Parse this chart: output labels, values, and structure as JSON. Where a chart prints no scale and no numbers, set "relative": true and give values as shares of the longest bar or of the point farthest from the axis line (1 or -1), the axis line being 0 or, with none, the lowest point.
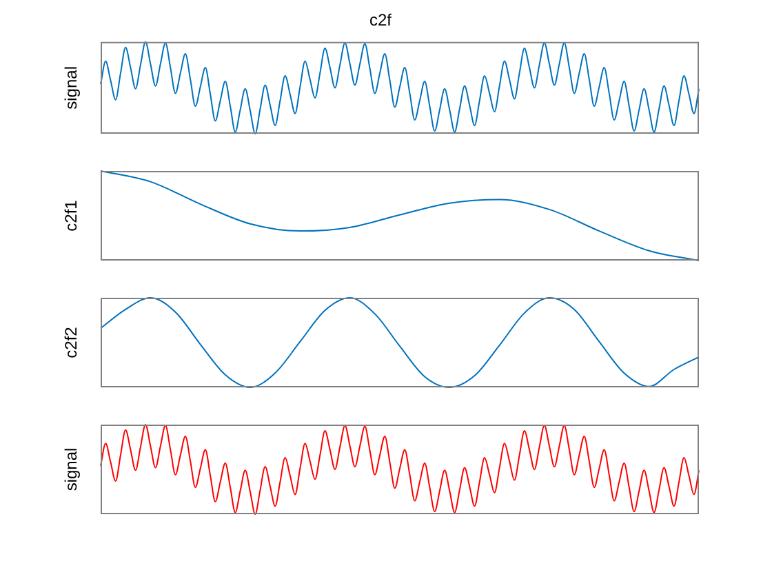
{
  "chart_data": [
    {
      "type": "line",
      "relative": true,
      "title": "c2f",
      "ylabel": "signal",
      "tick_labels": false,
      "color": "#0072bd",
      "categories": [
        null,
        null,
        null,
        null,
        null,
        null,
        null,
        null,
        null,
        null,
        null,
        null,
        null,
        null,
        null,
        null,
        null,
        null,
        null,
        null,
        null,
        null,
        null,
        null,
        null,
        null,
        null,
        null,
        null,
        null,
        null,
        null,
        null,
        null,
        null,
        null,
        null,
        null,
        null,
        null,
        null,
        null,
        null,
        null,
        null,
        null,
        null,
        null,
        null,
        null,
        null,
        null,
        null,
        null,
        null,
        null,
        null,
        null,
        null,
        null,
        null,
        null,
        null,
        null,
        null,
        null,
        null,
        null,
        null,
        null,
        null,
        null,
        null,
        null,
        null,
        null,
        null,
        null,
        null,
        null,
        null,
        null,
        null,
        null,
        null,
        null,
        null,
        null,
        null,
        null,
        null,
        null,
        null,
        null,
        null,
        null,
        null,
        null,
        null,
        null,
        null,
        null,
        null,
        null,
        null,
        null,
        null,
        null,
        null,
        null,
        null,
        null,
        null,
        null,
        null,
        null,
        null,
        null,
        null,
        null,
        null
      ],
      "values": [
        0.54,
        0.79,
        0.58,
        0.37,
        0.66,
        0.94,
        0.72,
        0.49,
        0.75,
        1.0,
        0.76,
        0.52,
        0.76,
        0.99,
        0.72,
        0.44,
        0.66,
        0.87,
        0.59,
        0.3,
        0.51,
        0.72,
        0.43,
        0.14,
        0.36,
        0.57,
        0.3,
        0.02,
        0.26,
        0.49,
        0.25,
        0.0,
        0.27,
        0.53,
        0.31,
        0.09,
        0.36,
        0.63,
        0.43,
        0.22,
        0.51,
        0.79,
        0.59,
        0.39,
        0.66,
        0.93,
        0.72,
        0.5,
        0.75,
        0.99,
        0.76,
        0.53,
        0.76,
        0.98,
        0.71,
        0.44,
        0.66,
        0.87,
        0.58,
        0.29,
        0.51,
        0.72,
        0.44,
        0.15,
        0.36,
        0.57,
        0.3,
        0.03,
        0.26,
        0.49,
        0.26,
        0.02,
        0.27,
        0.52,
        0.31,
        0.09,
        0.36,
        0.63,
        0.44,
        0.24,
        0.52,
        0.79,
        0.59,
        0.38,
        0.66,
        0.93,
        0.72,
        0.5,
        0.75,
        0.99,
        0.76,
        0.53,
        0.76,
        0.99,
        0.72,
        0.44,
        0.66,
        0.87,
        0.59,
        0.3,
        0.51,
        0.72,
        0.44,
        0.15,
        0.36,
        0.57,
        0.3,
        0.03,
        0.26,
        0.49,
        0.26,
        0.02,
        0.27,
        0.52,
        0.31,
        0.09,
        0.36,
        0.63,
        0.43,
        0.22,
        0.49
      ]
    },
    {
      "type": "line",
      "relative": true,
      "ylabel": "c2f1",
      "tick_labels": false,
      "color": "#0072bd",
      "categories": [
        null,
        null,
        null,
        null,
        null,
        null,
        null,
        null,
        null,
        null,
        null,
        null,
        null
      ],
      "values": [
        1.0,
        0.88,
        0.63,
        0.41,
        0.33,
        0.37,
        0.51,
        0.64,
        0.68,
        0.57,
        0.33,
        0.11,
        0.0
      ]
    },
    {
      "type": "line",
      "relative": true,
      "ylabel": "c2f2",
      "tick_labels": false,
      "color": "#0072bd",
      "categories": [
        null,
        null,
        null,
        null,
        null,
        null,
        null,
        null,
        null,
        null,
        null,
        null,
        null,
        null,
        null,
        null,
        null,
        null,
        null,
        null,
        null,
        null,
        null,
        null,
        null
      ],
      "values": [
        0.66,
        0.87,
        1.0,
        0.84,
        0.48,
        0.14,
        0.0,
        0.16,
        0.51,
        0.86,
        1.0,
        0.82,
        0.46,
        0.12,
        0.0,
        0.13,
        0.47,
        0.83,
        1.0,
        0.87,
        0.51,
        0.16,
        0.01,
        0.2,
        0.34
      ]
    },
    {
      "type": "line",
      "relative": true,
      "ylabel": "signal",
      "tick_labels": false,
      "color": "#ff0000",
      "categories": [
        null,
        null,
        null,
        null,
        null,
        null,
        null,
        null,
        null,
        null,
        null,
        null,
        null,
        null,
        null,
        null,
        null,
        null,
        null,
        null,
        null,
        null,
        null,
        null,
        null,
        null,
        null,
        null,
        null,
        null,
        null,
        null,
        null,
        null,
        null,
        null,
        null,
        null,
        null,
        null,
        null,
        null,
        null,
        null,
        null,
        null,
        null,
        null,
        null,
        null,
        null,
        null,
        null,
        null,
        null,
        null,
        null,
        null,
        null,
        null,
        null,
        null,
        null,
        null,
        null,
        null,
        null,
        null,
        null,
        null,
        null,
        null,
        null,
        null,
        null,
        null,
        null,
        null,
        null,
        null,
        null,
        null,
        null,
        null,
        null,
        null,
        null,
        null,
        null,
        null,
        null,
        null,
        null,
        null,
        null,
        null,
        null,
        null,
        null,
        null,
        null,
        null,
        null,
        null,
        null,
        null,
        null,
        null,
        null,
        null,
        null,
        null,
        null,
        null,
        null,
        null,
        null,
        null,
        null,
        null,
        null
      ],
      "values": [
        0.54,
        0.79,
        0.58,
        0.37,
        0.66,
        0.94,
        0.72,
        0.49,
        0.75,
        1.0,
        0.76,
        0.52,
        0.76,
        0.99,
        0.72,
        0.44,
        0.66,
        0.87,
        0.59,
        0.3,
        0.51,
        0.72,
        0.43,
        0.14,
        0.36,
        0.57,
        0.3,
        0.02,
        0.26,
        0.49,
        0.25,
        0.0,
        0.27,
        0.53,
        0.31,
        0.09,
        0.36,
        0.63,
        0.43,
        0.22,
        0.51,
        0.79,
        0.59,
        0.39,
        0.66,
        0.93,
        0.72,
        0.5,
        0.75,
        0.99,
        0.76,
        0.53,
        0.76,
        0.98,
        0.71,
        0.44,
        0.66,
        0.87,
        0.58,
        0.29,
        0.51,
        0.72,
        0.44,
        0.15,
        0.36,
        0.57,
        0.3,
        0.03,
        0.26,
        0.49,
        0.26,
        0.02,
        0.27,
        0.52,
        0.31,
        0.09,
        0.36,
        0.63,
        0.44,
        0.24,
        0.52,
        0.79,
        0.59,
        0.38,
        0.66,
        0.93,
        0.72,
        0.5,
        0.75,
        0.99,
        0.76,
        0.53,
        0.76,
        0.99,
        0.72,
        0.44,
        0.66,
        0.87,
        0.59,
        0.3,
        0.51,
        0.72,
        0.44,
        0.15,
        0.36,
        0.57,
        0.3,
        0.03,
        0.26,
        0.49,
        0.26,
        0.02,
        0.27,
        0.52,
        0.31,
        0.09,
        0.36,
        0.63,
        0.43,
        0.22,
        0.49
      ]
    }
  ]
}
